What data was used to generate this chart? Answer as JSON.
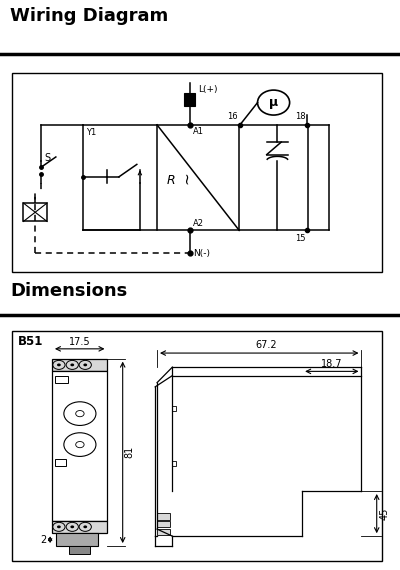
{
  "title_wiring": "Wiring Diagram",
  "title_dimensions": "Dimensions",
  "dim_label": "B51",
  "bg_color": "#ffffff",
  "dim_17_5": "17.5",
  "dim_67_2": "67.2",
  "dim_18_7": "18.7",
  "dim_81": "81",
  "dim_45": "45",
  "dim_2": "2"
}
